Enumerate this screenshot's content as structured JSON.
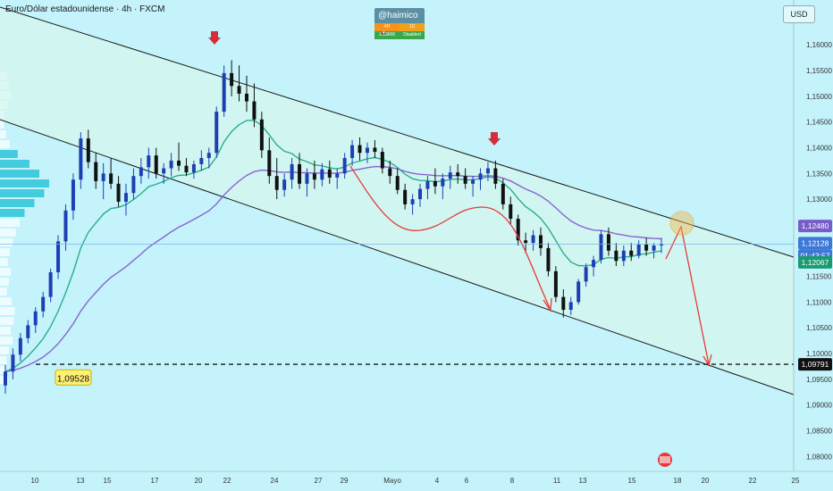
{
  "header": {
    "title": "Euro/Dólar estadounidense · 4h · FXCM",
    "currency": "USD"
  },
  "author": {
    "name": "@haimico 🦁",
    "row1": [
      "4H",
      "1D"
    ],
    "row2": [
      "1.13666",
      "Disabled"
    ]
  },
  "colors": {
    "background": "#c4f3fb",
    "channel_fill": "#d6f7ee",
    "up": "#1e3fb4",
    "down": "#111111",
    "ema_fast": "#2aae8c",
    "ema_slow": "#8a63d2",
    "annotation_red": "#e8393b",
    "target_circle": "#f5b74a",
    "volume_profile": "#2fc3d8",
    "support_label": "#fff176",
    "price_line": "#7eb6e8"
  },
  "chart_data": {
    "type": "candlestick",
    "timeframe": "4h",
    "symbol": "EURUSD",
    "y_axis": {
      "ticks": [
        "1,16000",
        "1,15500",
        "1,15000",
        "1,14500",
        "1,14000",
        "1,13500",
        "1,13000",
        "1,12500",
        "1,11500",
        "1,11000",
        "1,10500",
        "1,10000",
        "1,09500",
        "1,09000",
        "1,08500",
        "1,08000"
      ],
      "ylim": [
        1.0785,
        1.1635
      ]
    },
    "x_axis": {
      "ticks": [
        "10",
        "13",
        "15",
        "17",
        "20",
        "22",
        "24",
        "27",
        "29",
        "Mayo",
        "4",
        "6",
        "8",
        "11",
        "13",
        "15",
        "18",
        "20",
        "22",
        "25"
      ]
    },
    "price_labels": [
      {
        "value": "1,12480",
        "kind": "ema_slow"
      },
      {
        "value": "1,12128",
        "kind": "last_price"
      },
      {
        "value": "01:43:57",
        "kind": "countdown"
      },
      {
        "value": "1,12067",
        "kind": "ema_fast"
      },
      {
        "value": "1,09791",
        "kind": "target_level"
      }
    ],
    "support_label": "1,09528",
    "candles": [
      [
        1.0938,
        1.0978,
        1.0922,
        1.0965
      ],
      [
        1.0965,
        1.101,
        1.095,
        1.0998
      ],
      [
        1.0998,
        1.104,
        1.0985,
        1.103
      ],
      [
        1.103,
        1.1065,
        1.102,
        1.1055
      ],
      [
        1.1055,
        1.109,
        1.104,
        1.1082
      ],
      [
        1.1082,
        1.112,
        1.107,
        1.111
      ],
      [
        1.111,
        1.1165,
        1.11,
        1.1158
      ],
      [
        1.1158,
        1.123,
        1.1145,
        1.1218
      ],
      [
        1.1218,
        1.129,
        1.12,
        1.1278
      ],
      [
        1.1278,
        1.135,
        1.126,
        1.1338
      ],
      [
        1.1338,
        1.143,
        1.132,
        1.1418
      ],
      [
        1.1418,
        1.1435,
        1.136,
        1.1372
      ],
      [
        1.1372,
        1.139,
        1.132,
        1.1335
      ],
      [
        1.1335,
        1.137,
        1.13,
        1.135
      ],
      [
        1.135,
        1.138,
        1.132,
        1.133
      ],
      [
        1.133,
        1.1345,
        1.1285,
        1.1295
      ],
      [
        1.1295,
        1.133,
        1.1268,
        1.1312
      ],
      [
        1.1312,
        1.136,
        1.13,
        1.1345
      ],
      [
        1.1345,
        1.138,
        1.133,
        1.1362
      ],
      [
        1.1362,
        1.14,
        1.134,
        1.1385
      ],
      [
        1.1385,
        1.14,
        1.134,
        1.135
      ],
      [
        1.135,
        1.137,
        1.133,
        1.136
      ],
      [
        1.136,
        1.139,
        1.1345,
        1.1375
      ],
      [
        1.1375,
        1.141,
        1.1355,
        1.1365
      ],
      [
        1.1365,
        1.138,
        1.1345,
        1.1352
      ],
      [
        1.1352,
        1.1375,
        1.134,
        1.1368
      ],
      [
        1.1368,
        1.1395,
        1.1355,
        1.138
      ],
      [
        1.138,
        1.14,
        1.136,
        1.139
      ],
      [
        1.139,
        1.148,
        1.138,
        1.147
      ],
      [
        1.147,
        1.156,
        1.146,
        1.1545
      ],
      [
        1.1545,
        1.157,
        1.15,
        1.152
      ],
      [
        1.152,
        1.156,
        1.149,
        1.1505
      ],
      [
        1.1505,
        1.154,
        1.147,
        1.149
      ],
      [
        1.149,
        1.1525,
        1.144,
        1.1455
      ],
      [
        1.1455,
        1.147,
        1.138,
        1.1395
      ],
      [
        1.1395,
        1.142,
        1.133,
        1.1345
      ],
      [
        1.1345,
        1.138,
        1.13,
        1.1318
      ],
      [
        1.1318,
        1.135,
        1.1305,
        1.1338
      ],
      [
        1.1338,
        1.138,
        1.132,
        1.1368
      ],
      [
        1.1368,
        1.139,
        1.132,
        1.133
      ],
      [
        1.133,
        1.136,
        1.1305,
        1.135
      ],
      [
        1.135,
        1.1375,
        1.132,
        1.1338
      ],
      [
        1.1338,
        1.137,
        1.1325,
        1.1358
      ],
      [
        1.1358,
        1.1375,
        1.133,
        1.1342
      ],
      [
        1.1342,
        1.136,
        1.132,
        1.135
      ],
      [
        1.135,
        1.139,
        1.134,
        1.138
      ],
      [
        1.138,
        1.1415,
        1.1365,
        1.1405
      ],
      [
        1.1405,
        1.142,
        1.1375,
        1.139
      ],
      [
        1.139,
        1.141,
        1.137,
        1.14
      ],
      [
        1.14,
        1.1415,
        1.138,
        1.1392
      ],
      [
        1.1392,
        1.14,
        1.135,
        1.136
      ],
      [
        1.136,
        1.1375,
        1.133,
        1.1345
      ],
      [
        1.1345,
        1.136,
        1.131,
        1.1318
      ],
      [
        1.1318,
        1.133,
        1.128,
        1.129
      ],
      [
        1.129,
        1.131,
        1.127,
        1.13
      ],
      [
        1.13,
        1.133,
        1.1285,
        1.132
      ],
      [
        1.132,
        1.1345,
        1.13,
        1.1335
      ],
      [
        1.1335,
        1.136,
        1.131,
        1.1325
      ],
      [
        1.1325,
        1.135,
        1.13,
        1.134
      ],
      [
        1.134,
        1.1365,
        1.132,
        1.1352
      ],
      [
        1.1352,
        1.1368,
        1.133,
        1.1345
      ],
      [
        1.1345,
        1.136,
        1.132,
        1.133
      ],
      [
        1.133,
        1.1345,
        1.1305,
        1.1338
      ],
      [
        1.1338,
        1.136,
        1.1318,
        1.135
      ],
      [
        1.135,
        1.1372,
        1.1335,
        1.136
      ],
      [
        1.136,
        1.1375,
        1.132,
        1.133
      ],
      [
        1.133,
        1.134,
        1.128,
        1.129
      ],
      [
        1.129,
        1.1305,
        1.125,
        1.1262
      ],
      [
        1.1262,
        1.127,
        1.121,
        1.122
      ],
      [
        1.122,
        1.1235,
        1.1195,
        1.1215
      ],
      [
        1.1215,
        1.124,
        1.12,
        1.123
      ],
      [
        1.123,
        1.1245,
        1.119,
        1.1205
      ],
      [
        1.1205,
        1.1215,
        1.115,
        1.116
      ],
      [
        1.116,
        1.117,
        1.11,
        1.111
      ],
      [
        1.111,
        1.1125,
        1.107,
        1.1085
      ],
      [
        1.1085,
        1.111,
        1.1075,
        1.11
      ],
      [
        1.11,
        1.1145,
        1.1095,
        1.114
      ],
      [
        1.114,
        1.1175,
        1.113,
        1.1168
      ],
      [
        1.1168,
        1.119,
        1.115,
        1.1182
      ],
      [
        1.1182,
        1.124,
        1.1175,
        1.1232
      ],
      [
        1.1232,
        1.1245,
        1.119,
        1.12
      ],
      [
        1.12,
        1.1215,
        1.117,
        1.118
      ],
      [
        1.118,
        1.121,
        1.117,
        1.12
      ],
      [
        1.12,
        1.1215,
        1.118,
        1.119
      ],
      [
        1.119,
        1.122,
        1.1185,
        1.1212
      ],
      [
        1.1212,
        1.1225,
        1.119,
        1.12
      ],
      [
        1.12,
        1.1215,
        1.1185,
        1.121
      ],
      [
        1.121,
        1.1225,
        1.1195,
        1.1213
      ]
    ]
  }
}
